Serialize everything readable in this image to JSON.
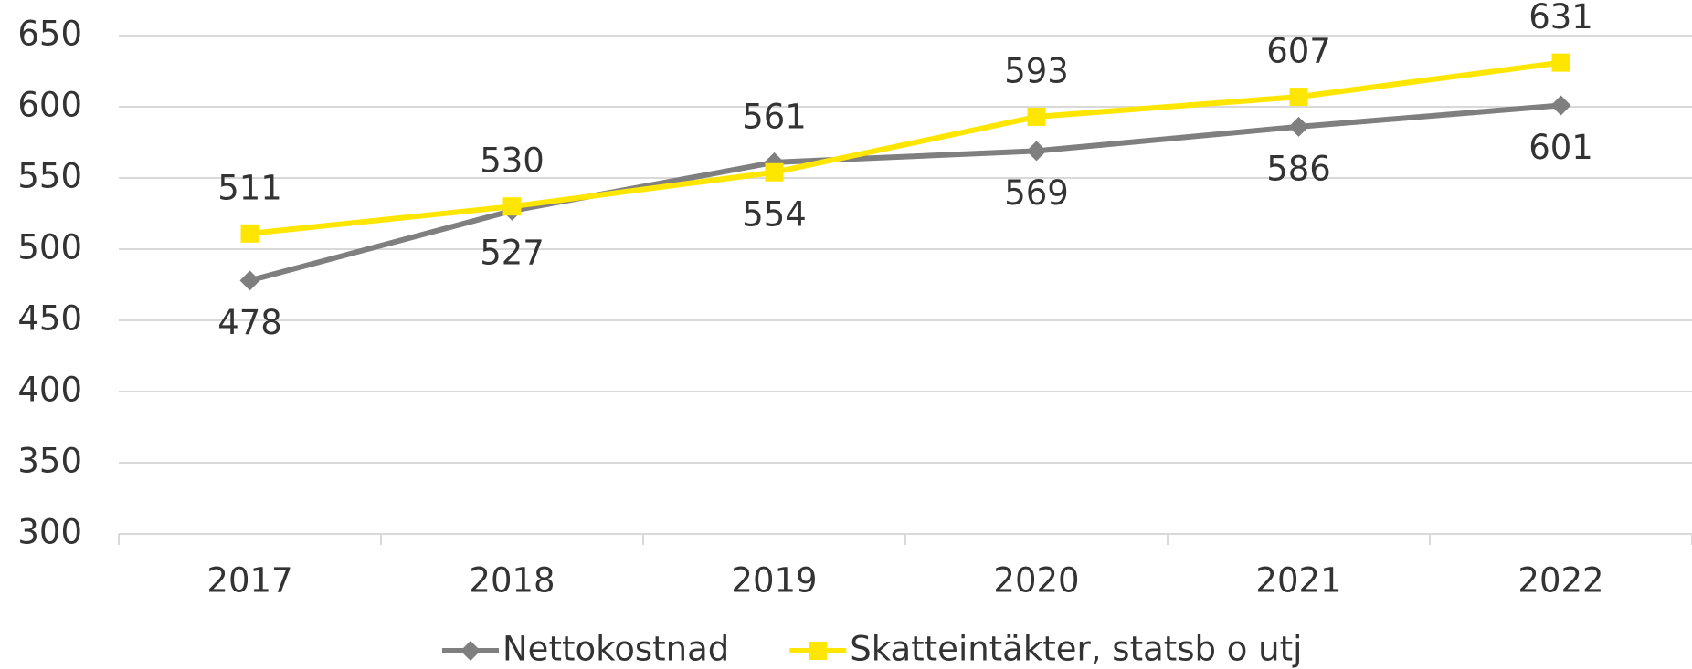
{
  "chart_data": {
    "type": "line",
    "categories": [
      "2017",
      "2018",
      "2019",
      "2020",
      "2021",
      "2022"
    ],
    "series": [
      {
        "name": "Nettokostnad",
        "color": "#7f7f7f",
        "marker": "diamond",
        "values": [
          478,
          527,
          561,
          569,
          586,
          601
        ]
      },
      {
        "name": "Skatteintäkter, statsb o utj",
        "color": "#ffe600",
        "marker": "square",
        "values": [
          511,
          530,
          554,
          593,
          607,
          631
        ]
      }
    ],
    "ylim": [
      300,
      650
    ],
    "yticks": [
      300,
      350,
      400,
      450,
      500,
      550,
      600,
      650
    ],
    "grid": true,
    "legend": "bottom"
  }
}
